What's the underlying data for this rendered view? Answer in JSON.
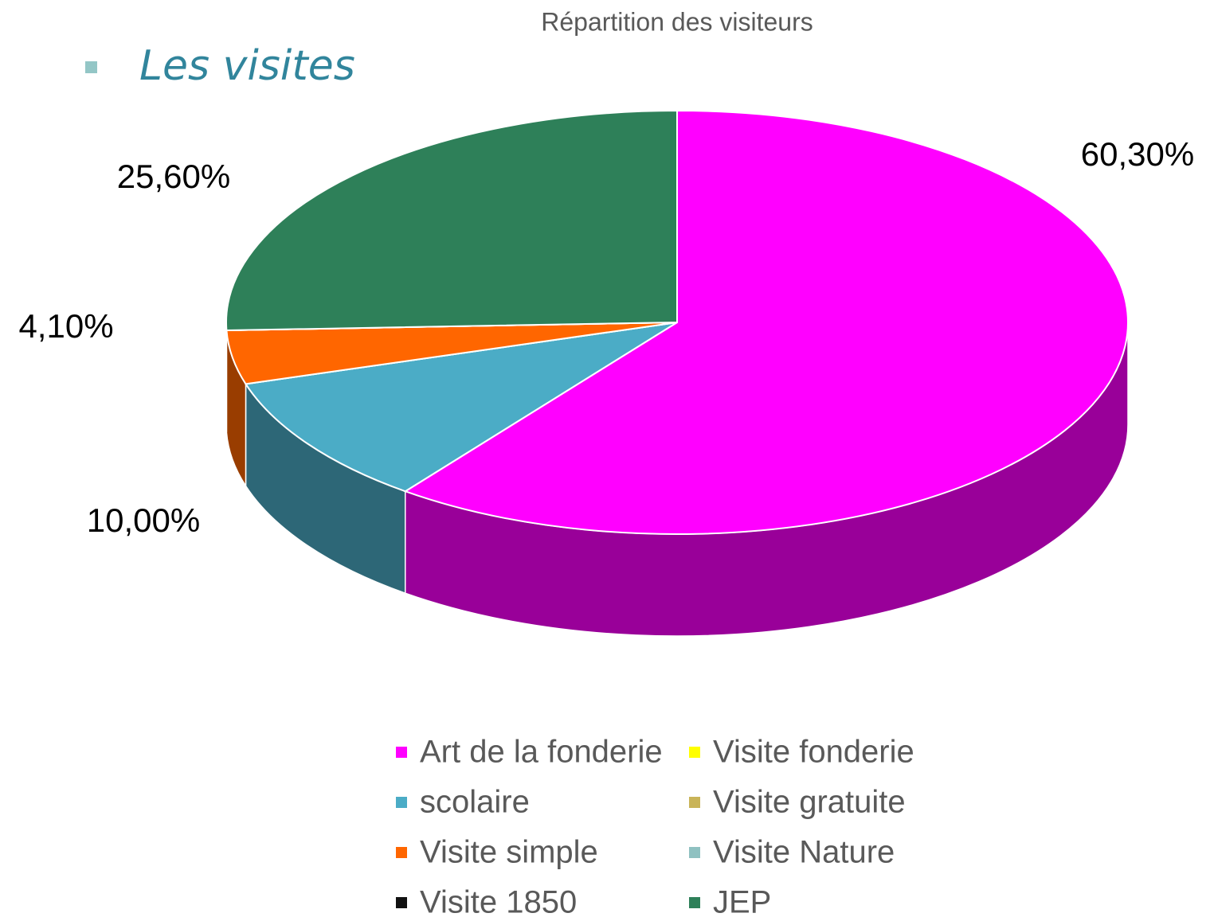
{
  "heading": "Les visites",
  "chart_data": {
    "type": "pie",
    "title": "Répartition des visiteurs",
    "categories": [
      "Art de la fonderie",
      "Visite fonderie",
      "scolaire",
      "Visite gratuite",
      "Visite simple",
      "Visite Nature",
      "Visite 1850",
      "JEP"
    ],
    "values": [
      60.3,
      0,
      10.0,
      0,
      4.1,
      0,
      0,
      25.6
    ],
    "value_labels": [
      "60,30%",
      null,
      "10,00%",
      null,
      "4,10%",
      null,
      null,
      "25,60%"
    ],
    "colors": [
      "#ff00ff",
      "#ffff00",
      "#4bacc6",
      "#c9b458",
      "#ff6600",
      "#8fc1c1",
      "#111111",
      "#2e8059"
    ],
    "legend": "bottom"
  }
}
